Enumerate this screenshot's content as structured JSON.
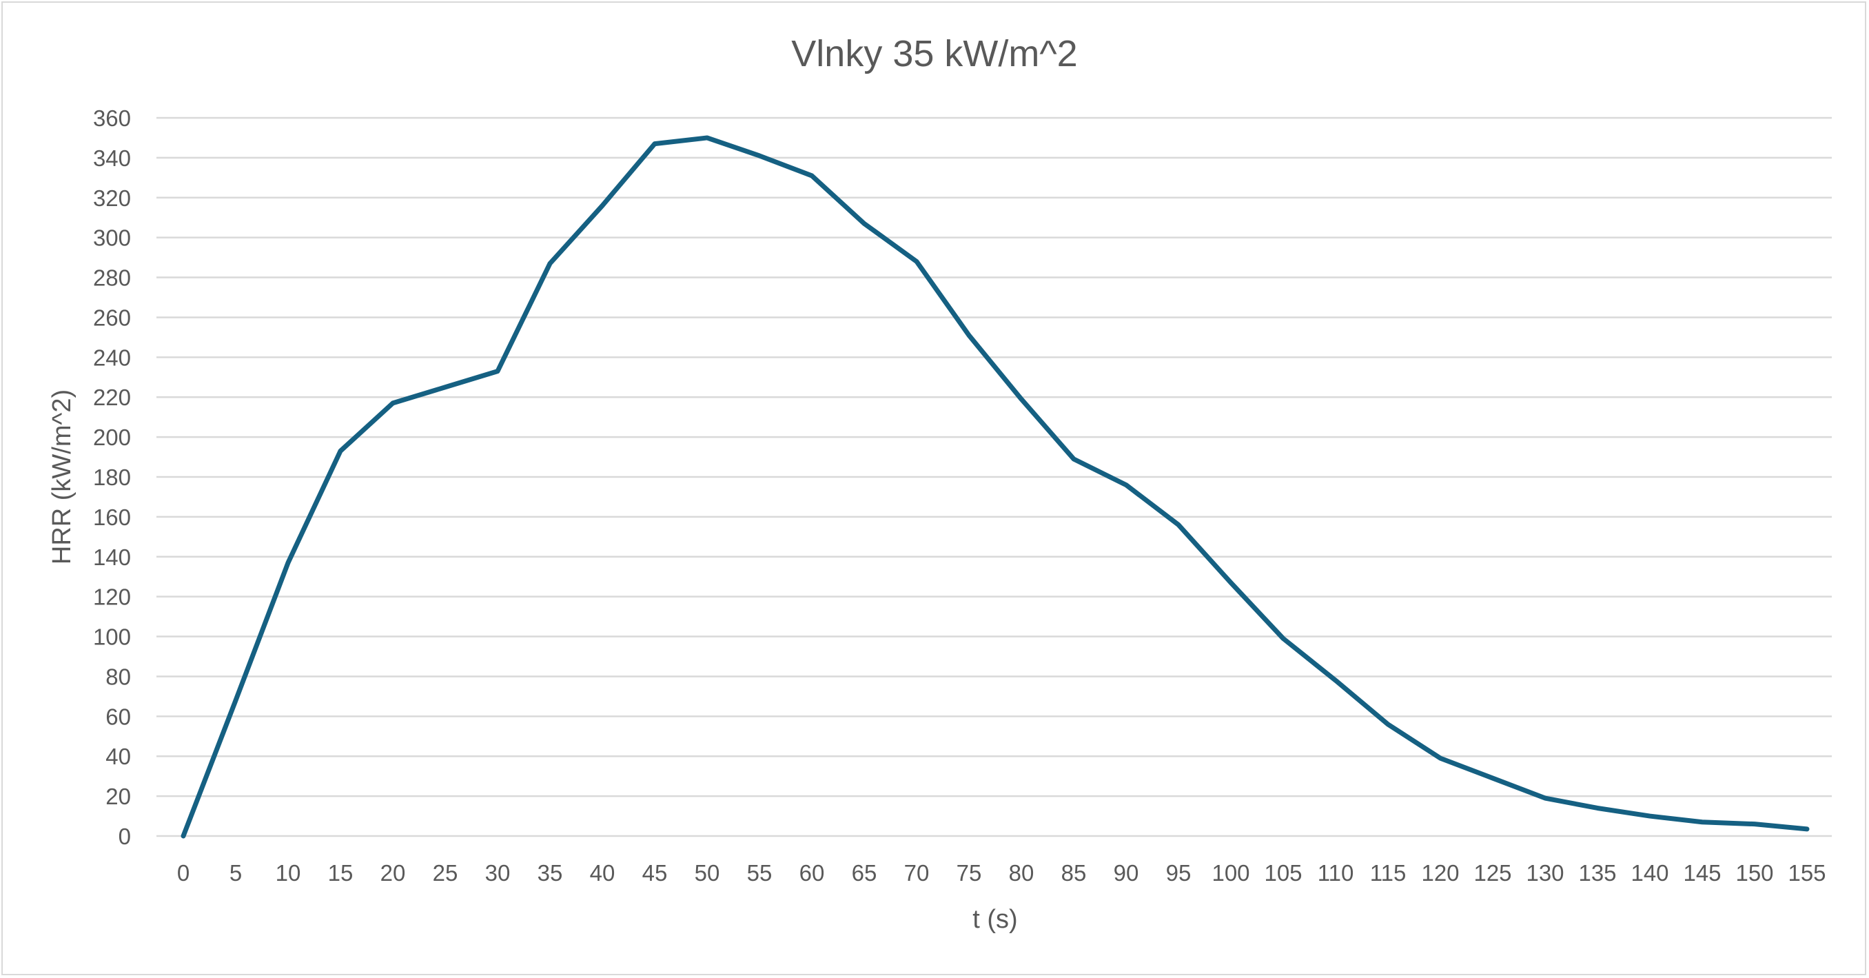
{
  "chart_data": {
    "type": "line",
    "title": "Vlnky 35 kW/m^2",
    "xlabel": "t (s)",
    "ylabel": "HRR (kW/m^2)",
    "ylim": [
      0,
      360
    ],
    "yticks": [
      0,
      20,
      40,
      60,
      80,
      100,
      120,
      140,
      160,
      180,
      200,
      220,
      240,
      260,
      280,
      300,
      320,
      340,
      360
    ],
    "x": [
      0,
      5,
      10,
      15,
      20,
      25,
      30,
      35,
      40,
      45,
      50,
      55,
      60,
      65,
      70,
      75,
      80,
      85,
      90,
      95,
      100,
      105,
      110,
      115,
      120,
      125,
      130,
      135,
      140,
      145,
      150,
      155
    ],
    "series": [
      {
        "name": "HRR",
        "color": "#156082",
        "values": [
          0,
          68,
          137,
          193,
          217,
          225,
          233,
          287,
          316,
          347,
          350,
          341,
          331,
          307,
          288,
          251,
          219,
          189,
          176,
          156,
          127,
          99,
          78,
          56,
          39,
          29,
          19,
          14,
          10,
          7,
          6,
          3.5
        ]
      }
    ],
    "grid": true,
    "legend": "none"
  }
}
